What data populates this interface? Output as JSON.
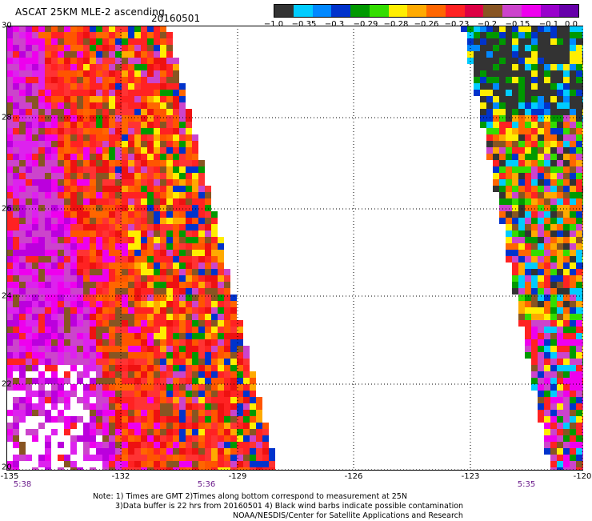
{
  "header": {
    "title": "ASCAT 25KM MLE-2 ascending",
    "date": "20160501"
  },
  "colorbar": {
    "colors": [
      "#333333",
      "#00ccff",
      "#0088ff",
      "#0033cc",
      "#009900",
      "#33dd00",
      "#ffee00",
      "#ffaa00",
      "#ff6600",
      "#ff2222",
      "#dd0044",
      "#885522",
      "#cc44cc",
      "#ee00ee",
      "#9900cc",
      "#6600aa"
    ],
    "labels": [
      "−1.0",
      "−0.35",
      "−0.3",
      "−0.29",
      "−0.28",
      "−0.26",
      "−0.23",
      "−0.2",
      "−0.15",
      "−0.1",
      "0.0"
    ]
  },
  "axes": {
    "lat_labels": [
      "30",
      "28",
      "26",
      "24",
      "22",
      "20"
    ],
    "lon_labels": [
      "-135",
      "-132",
      "-129",
      "-126",
      "-123",
      "-120"
    ]
  },
  "times": [
    "5:38",
    "5:36",
    "5:35"
  ],
  "notes": {
    "line1": "Note: 1) Times are GMT 2)Times along bottom correspond to measurement at 25N",
    "line2": "3)Data buffer is 22 hrs from 20160501 4) Black wind barbs indicate possible contamination",
    "line3": "NOAA/NESDIS/Center for Satellite Applications and Research"
  }
}
